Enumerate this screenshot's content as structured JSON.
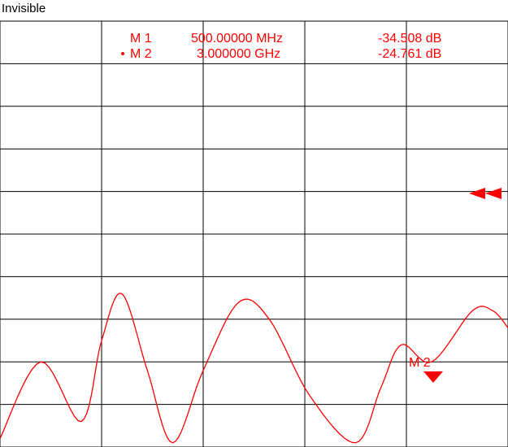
{
  "header": {
    "state_label": "Invisible"
  },
  "colors": {
    "trace": "#ff0000",
    "grid": "#000000",
    "background": "#ffffff"
  },
  "markers": [
    {
      "name": "M 1",
      "active": false,
      "freq": "500.00000 MHz",
      "value": "-34.508 dB"
    },
    {
      "name": "M 2",
      "active": true,
      "freq": "3.000000 GHz",
      "value": "-24.761 dB"
    }
  ],
  "marker_tag": {
    "label": "M 2"
  },
  "reference_indicator": "double-left-arrow-icon",
  "chart_data": {
    "type": "line",
    "grid": true,
    "divisions": {
      "x": 5,
      "y": 10
    },
    "series": [
      {
        "values": [
          [
            0.0,
            0.98
          ],
          [
            0.08,
            0.8
          ],
          [
            0.16,
            0.94
          ],
          [
            0.2,
            0.75
          ],
          [
            0.24,
            0.64
          ],
          [
            0.29,
            0.82
          ],
          [
            0.34,
            0.99
          ],
          [
            0.4,
            0.82
          ],
          [
            0.47,
            0.66
          ],
          [
            0.53,
            0.7
          ],
          [
            0.61,
            0.88
          ],
          [
            0.7,
            0.99
          ],
          [
            0.75,
            0.86
          ],
          [
            0.79,
            0.76
          ],
          [
            0.85,
            0.8
          ],
          [
            0.93,
            0.68
          ],
          [
            0.97,
            0.68
          ],
          [
            1.0,
            0.72
          ]
        ]
      }
    ],
    "active_marker_position": [
      0.855,
      0.79
    ]
  }
}
